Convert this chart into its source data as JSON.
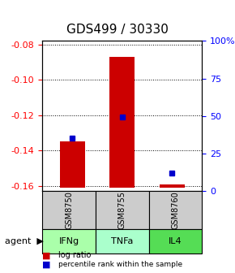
{
  "title": "GDS499 / 30330",
  "samples": [
    "GSM8750",
    "GSM8755",
    "GSM8760"
  ],
  "agents": [
    "IFNg",
    "TNFa",
    "IL4"
  ],
  "log_ratio_values": [
    -0.135,
    -0.087,
    -0.159
  ],
  "log_ratio_base": -0.161,
  "percentile_values": [
    -0.133,
    -0.121,
    -0.153
  ],
  "ylim_min": -0.163,
  "ylim_max": -0.078,
  "yticks_left": [
    -0.08,
    -0.1,
    -0.12,
    -0.14,
    -0.16
  ],
  "yticks_right_vals": [
    -0.163,
    -0.14175,
    -0.1205,
    -0.09925,
    -0.078
  ],
  "yticks_right_labels": [
    "0",
    "25",
    "50",
    "75",
    "100%"
  ],
  "bar_color": "#cc0000",
  "percentile_color": "#0000cc",
  "agent_colors": [
    "#aaffaa",
    "#aaffcc",
    "#66ee66"
  ],
  "sample_bg": "#cccccc",
  "grid_color": "#888888",
  "title_fontsize": 11,
  "axis_label_fontsize": 9,
  "tick_fontsize": 8,
  "bar_width": 0.5
}
